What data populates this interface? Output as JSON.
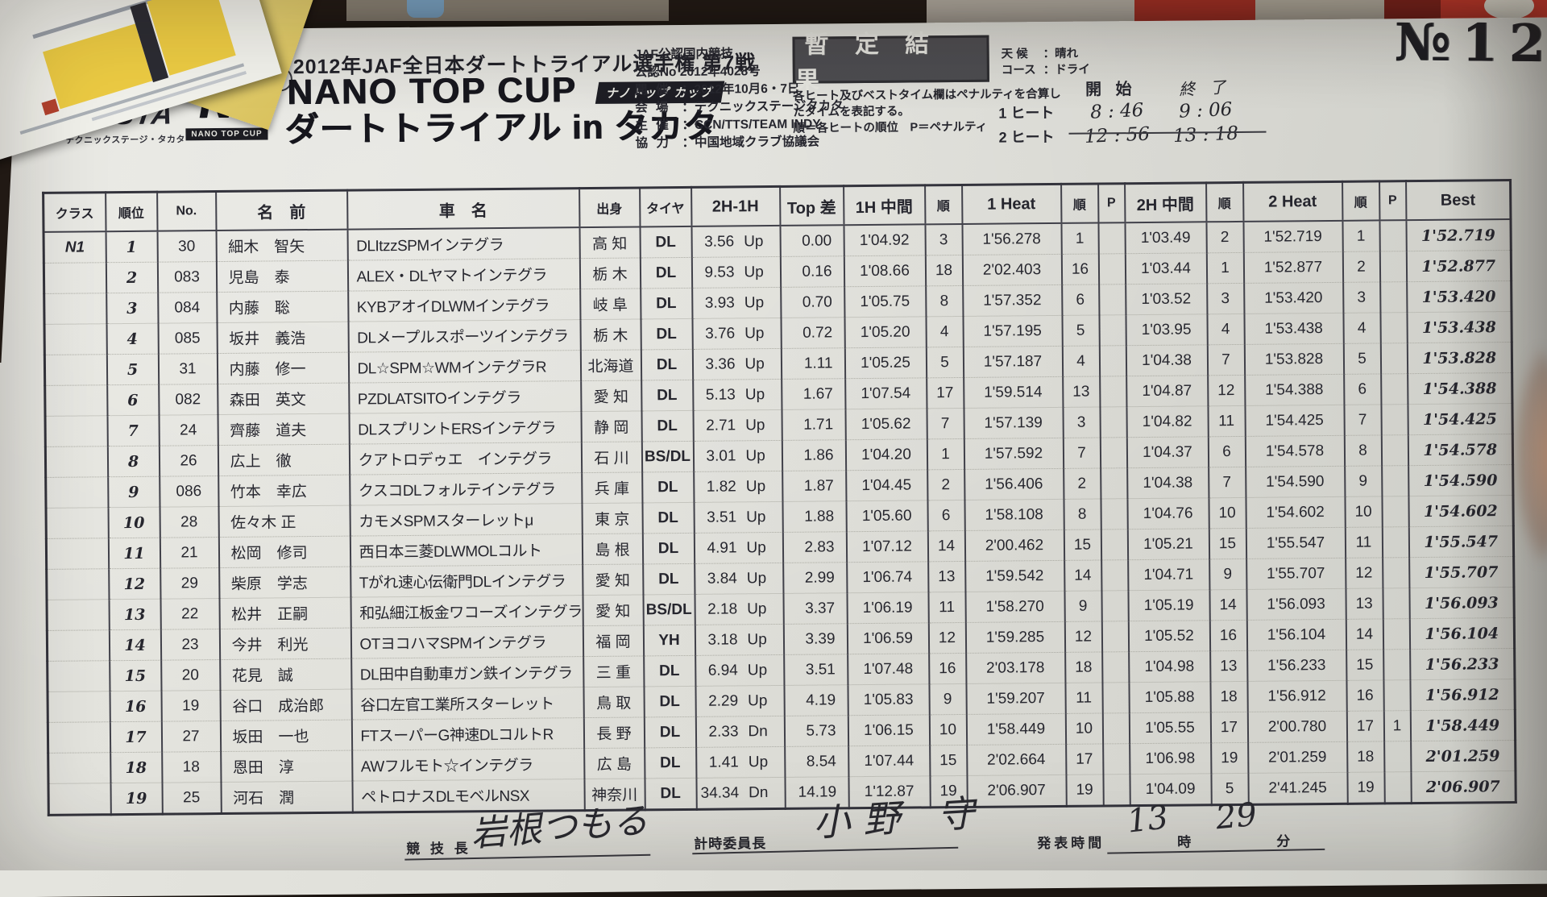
{
  "doc": {
    "doc_no": "№12",
    "stamp": "暫 定 結 果",
    "series_title": "2012年JAF全日本ダートトライアル選手権 第7戦",
    "event_title": "NANO TOP CUP",
    "event_title_badge": "ナノトップ カップ",
    "event_subtitle": "ダートトライアル in タカタ",
    "sanction_line1": "JAF公認国内競技",
    "sanction_line2": "公認No 2012年4028号",
    "details": [
      {
        "label": "開 催",
        "value": "：2012年10月6・7日"
      },
      {
        "label": "会 場",
        "value": "：テクニックステージタカタ"
      },
      {
        "label": "主 催",
        "value": "：CCN/TTS/TEAM INDY"
      },
      {
        "label": "協 力",
        "value": "：中国地域クラブ協議会"
      }
    ],
    "notes": "各ヒート及びベストタイム欄はペナルティを合算し\nたタイムを表記する。\n順＝各ヒートの順位　P＝ペナルティ",
    "weather_label": "天 候",
    "weather_value": "：晴れ",
    "course_label": "コース",
    "course_value": "：ドライ",
    "heat_times": {
      "start_header": "開 始",
      "end_header": "終 了",
      "rows": [
        {
          "label": "1 ヒート",
          "start": "8 : 46",
          "end": "9 : 06"
        },
        {
          "label": "2 ヒート",
          "start": "12 : 56",
          "end": "13 : 18"
        }
      ]
    },
    "logos": {
      "testa": "TESTA",
      "testa_sub": "テクニックステージ・タカタ",
      "nt": "NT",
      "nt_sub": "NANO TOP CUP"
    }
  },
  "table": {
    "headers": [
      "クラス",
      "順位",
      "No.",
      "名　前",
      "車　名",
      "出身",
      "タイヤ",
      "2H-1H",
      "Top 差",
      "1H 中間",
      "順",
      "1 Heat",
      "順",
      "P",
      "2H 中間",
      "順",
      "2 Heat",
      "順",
      "P",
      "Best"
    ],
    "rows": [
      {
        "cls": "N1",
        "pos": "1",
        "no": "30",
        "name": "細木　智矢",
        "car": "DLItzzSPMインテグラ",
        "pref": "高 知",
        "tire": "DL",
        "diff": "3.56",
        "diff_dir": "Up",
        "gap": "0.00",
        "mid1": "1'04.92",
        "mid1_rank": "3",
        "heat1": "1'56.278",
        "heat1_rank": "1",
        "p1": "",
        "mid2": "1'03.49",
        "mid2_rank": "2",
        "heat2": "1'52.719",
        "heat2_rank": "1",
        "p2": "",
        "best": "1'52.719"
      },
      {
        "cls": "",
        "pos": "2",
        "no": "083",
        "name": "児島　泰",
        "car": "ALEX・DLヤマトインテグラ",
        "pref": "栃 木",
        "tire": "DL",
        "diff": "9.53",
        "diff_dir": "Up",
        "gap": "0.16",
        "mid1": "1'08.66",
        "mid1_rank": "18",
        "heat1": "2'02.403",
        "heat1_rank": "16",
        "p1": "",
        "mid2": "1'03.44",
        "mid2_rank": "1",
        "heat2": "1'52.877",
        "heat2_rank": "2",
        "p2": "",
        "best": "1'52.877"
      },
      {
        "cls": "",
        "pos": "3",
        "no": "084",
        "name": "内藤　聡",
        "car": "KYBアオイDLWMインテグラ",
        "pref": "岐 阜",
        "tire": "DL",
        "diff": "3.93",
        "diff_dir": "Up",
        "gap": "0.70",
        "mid1": "1'05.75",
        "mid1_rank": "8",
        "heat1": "1'57.352",
        "heat1_rank": "6",
        "p1": "",
        "mid2": "1'03.52",
        "mid2_rank": "3",
        "heat2": "1'53.420",
        "heat2_rank": "3",
        "p2": "",
        "best": "1'53.420"
      },
      {
        "cls": "",
        "pos": "4",
        "no": "085",
        "name": "坂井　義浩",
        "car": "DLメープルスポーツインテグラ",
        "pref": "栃 木",
        "tire": "DL",
        "diff": "3.76",
        "diff_dir": "Up",
        "gap": "0.72",
        "mid1": "1'05.20",
        "mid1_rank": "4",
        "heat1": "1'57.195",
        "heat1_rank": "5",
        "p1": "",
        "mid2": "1'03.95",
        "mid2_rank": "4",
        "heat2": "1'53.438",
        "heat2_rank": "4",
        "p2": "",
        "best": "1'53.438"
      },
      {
        "cls": "",
        "pos": "5",
        "no": "31",
        "name": "内藤　修一",
        "car": "DL☆SPM☆WMインテグラR",
        "pref": "北海道",
        "tire": "DL",
        "diff": "3.36",
        "diff_dir": "Up",
        "gap": "1.11",
        "mid1": "1'05.25",
        "mid1_rank": "5",
        "heat1": "1'57.187",
        "heat1_rank": "4",
        "p1": "",
        "mid2": "1'04.38",
        "mid2_rank": "7",
        "heat2": "1'53.828",
        "heat2_rank": "5",
        "p2": "",
        "best": "1'53.828"
      },
      {
        "cls": "",
        "pos": "6",
        "no": "082",
        "name": "森田　英文",
        "car": "PZDLATSITOインテグラ",
        "pref": "愛 知",
        "tire": "DL",
        "diff": "5.13",
        "diff_dir": "Up",
        "gap": "1.67",
        "mid1": "1'07.54",
        "mid1_rank": "17",
        "heat1": "1'59.514",
        "heat1_rank": "13",
        "p1": "",
        "mid2": "1'04.87",
        "mid2_rank": "12",
        "heat2": "1'54.388",
        "heat2_rank": "6",
        "p2": "",
        "best": "1'54.388"
      },
      {
        "cls": "",
        "pos": "7",
        "no": "24",
        "name": "齊藤　道夫",
        "car": "DLスプリントERSインテグラ",
        "pref": "静 岡",
        "tire": "DL",
        "diff": "2.71",
        "diff_dir": "Up",
        "gap": "1.71",
        "mid1": "1'05.62",
        "mid1_rank": "7",
        "heat1": "1'57.139",
        "heat1_rank": "3",
        "p1": "",
        "mid2": "1'04.82",
        "mid2_rank": "11",
        "heat2": "1'54.425",
        "heat2_rank": "7",
        "p2": "",
        "best": "1'54.425"
      },
      {
        "cls": "",
        "pos": "8",
        "no": "26",
        "name": "広上　徹",
        "car": "クアトロデゥエ　インテグラ",
        "pref": "石 川",
        "tire": "BS/DL",
        "diff": "3.01",
        "diff_dir": "Up",
        "gap": "1.86",
        "mid1": "1'04.20",
        "mid1_rank": "1",
        "heat1": "1'57.592",
        "heat1_rank": "7",
        "p1": "",
        "mid2": "1'04.37",
        "mid2_rank": "6",
        "heat2": "1'54.578",
        "heat2_rank": "8",
        "p2": "",
        "best": "1'54.578"
      },
      {
        "cls": "",
        "pos": "9",
        "no": "086",
        "name": "竹本　幸広",
        "car": "クスコDLフォルテインテグラ",
        "pref": "兵 庫",
        "tire": "DL",
        "diff": "1.82",
        "diff_dir": "Up",
        "gap": "1.87",
        "mid1": "1'04.45",
        "mid1_rank": "2",
        "heat1": "1'56.406",
        "heat1_rank": "2",
        "p1": "",
        "mid2": "1'04.38",
        "mid2_rank": "7",
        "heat2": "1'54.590",
        "heat2_rank": "9",
        "p2": "",
        "best": "1'54.590"
      },
      {
        "cls": "",
        "pos": "10",
        "no": "28",
        "name": "佐々木 正",
        "car": "カモメSPMスターレットμ",
        "pref": "東 京",
        "tire": "DL",
        "diff": "3.51",
        "diff_dir": "Up",
        "gap": "1.88",
        "mid1": "1'05.60",
        "mid1_rank": "6",
        "heat1": "1'58.108",
        "heat1_rank": "8",
        "p1": "",
        "mid2": "1'04.76",
        "mid2_rank": "10",
        "heat2": "1'54.602",
        "heat2_rank": "10",
        "p2": "",
        "best": "1'54.602"
      },
      {
        "cls": "",
        "pos": "11",
        "no": "21",
        "name": "松岡　修司",
        "car": "西日本三菱DLWMOLコルト",
        "pref": "島 根",
        "tire": "DL",
        "diff": "4.91",
        "diff_dir": "Up",
        "gap": "2.83",
        "mid1": "1'07.12",
        "mid1_rank": "14",
        "heat1": "2'00.462",
        "heat1_rank": "15",
        "p1": "",
        "mid2": "1'05.21",
        "mid2_rank": "15",
        "heat2": "1'55.547",
        "heat2_rank": "11",
        "p2": "",
        "best": "1'55.547"
      },
      {
        "cls": "",
        "pos": "12",
        "no": "29",
        "name": "柴原　学志",
        "car": "Tがれ速心伝衛門DLインテグラ",
        "pref": "愛 知",
        "tire": "DL",
        "diff": "3.84",
        "diff_dir": "Up",
        "gap": "2.99",
        "mid1": "1'06.74",
        "mid1_rank": "13",
        "heat1": "1'59.542",
        "heat1_rank": "14",
        "p1": "",
        "mid2": "1'04.71",
        "mid2_rank": "9",
        "heat2": "1'55.707",
        "heat2_rank": "12",
        "p2": "",
        "best": "1'55.707"
      },
      {
        "cls": "",
        "pos": "13",
        "no": "22",
        "name": "松井　正嗣",
        "car": "和弘細江板金ワコーズインテグラ",
        "pref": "愛 知",
        "tire": "BS/DL",
        "diff": "2.18",
        "diff_dir": "Up",
        "gap": "3.37",
        "mid1": "1'06.19",
        "mid1_rank": "11",
        "heat1": "1'58.270",
        "heat1_rank": "9",
        "p1": "",
        "mid2": "1'05.19",
        "mid2_rank": "14",
        "heat2": "1'56.093",
        "heat2_rank": "13",
        "p2": "",
        "best": "1'56.093"
      },
      {
        "cls": "",
        "pos": "14",
        "no": "23",
        "name": "今井　利光",
        "car": "OTヨコハマSPMインテグラ",
        "pref": "福 岡",
        "tire": "YH",
        "diff": "3.18",
        "diff_dir": "Up",
        "gap": "3.39",
        "mid1": "1'06.59",
        "mid1_rank": "12",
        "heat1": "1'59.285",
        "heat1_rank": "12",
        "p1": "",
        "mid2": "1'05.52",
        "mid2_rank": "16",
        "heat2": "1'56.104",
        "heat2_rank": "14",
        "p2": "",
        "best": "1'56.104"
      },
      {
        "cls": "",
        "pos": "15",
        "no": "20",
        "name": "花見　誠",
        "car": "DL田中自動車ガン鉄インテグラ",
        "pref": "三 重",
        "tire": "DL",
        "diff": "6.94",
        "diff_dir": "Up",
        "gap": "3.51",
        "mid1": "1'07.48",
        "mid1_rank": "16",
        "heat1": "2'03.178",
        "heat1_rank": "18",
        "p1": "",
        "mid2": "1'04.98",
        "mid2_rank": "13",
        "heat2": "1'56.233",
        "heat2_rank": "15",
        "p2": "",
        "best": "1'56.233"
      },
      {
        "cls": "",
        "pos": "16",
        "no": "19",
        "name": "谷口　成治郎",
        "car": "谷口左官工業所スターレット",
        "pref": "鳥 取",
        "tire": "DL",
        "diff": "2.29",
        "diff_dir": "Up",
        "gap": "4.19",
        "mid1": "1'05.83",
        "mid1_rank": "9",
        "heat1": "1'59.207",
        "heat1_rank": "11",
        "p1": "",
        "mid2": "1'05.88",
        "mid2_rank": "18",
        "heat2": "1'56.912",
        "heat2_rank": "16",
        "p2": "",
        "best": "1'56.912"
      },
      {
        "cls": "",
        "pos": "17",
        "no": "27",
        "name": "坂田　一也",
        "car": "FTスーパーG神速DLコルトR",
        "pref": "長 野",
        "tire": "DL",
        "diff": "2.33",
        "diff_dir": "Dn",
        "gap": "5.73",
        "mid1": "1'06.15",
        "mid1_rank": "10",
        "heat1": "1'58.449",
        "heat1_rank": "10",
        "p1": "",
        "mid2": "1'05.55",
        "mid2_rank": "17",
        "heat2": "2'00.780",
        "heat2_rank": "17",
        "p2": "1",
        "best": "1'58.449"
      },
      {
        "cls": "",
        "pos": "18",
        "no": "18",
        "name": "恩田　淳",
        "car": "AWフルモト☆インテグラ",
        "pref": "広 島",
        "tire": "DL",
        "diff": "1.41",
        "diff_dir": "Up",
        "gap": "8.54",
        "mid1": "1'07.44",
        "mid1_rank": "15",
        "heat1": "2'02.664",
        "heat1_rank": "17",
        "p1": "",
        "mid2": "1'06.98",
        "mid2_rank": "19",
        "heat2": "2'01.259",
        "heat2_rank": "18",
        "p2": "",
        "best": "2'01.259"
      },
      {
        "cls": "",
        "pos": "19",
        "no": "25",
        "name": "河石　潤",
        "car": "ペトロナスDLモベルNSX",
        "pref": "神奈川",
        "tire": "DL",
        "diff": "34.34",
        "diff_dir": "Dn",
        "gap": "14.19",
        "mid1": "1'12.87",
        "mid1_rank": "19",
        "heat1": "2'06.907",
        "heat1_rank": "19",
        "p1": "",
        "mid2": "1'04.09",
        "mid2_rank": "5",
        "heat2": "2'41.245",
        "heat2_rank": "19",
        "p2": "",
        "best": "2'06.907"
      }
    ]
  },
  "footer": {
    "race_director_label": "競 技 長",
    "race_director_signature": "岩根つもる",
    "timekeeper_label": "計時委員長",
    "timekeeper_signature": "小野 守",
    "announce_label": "発表時間",
    "announce_hour": "13",
    "hour_suffix": "時",
    "announce_minute": "29",
    "minute_suffix": "分"
  }
}
